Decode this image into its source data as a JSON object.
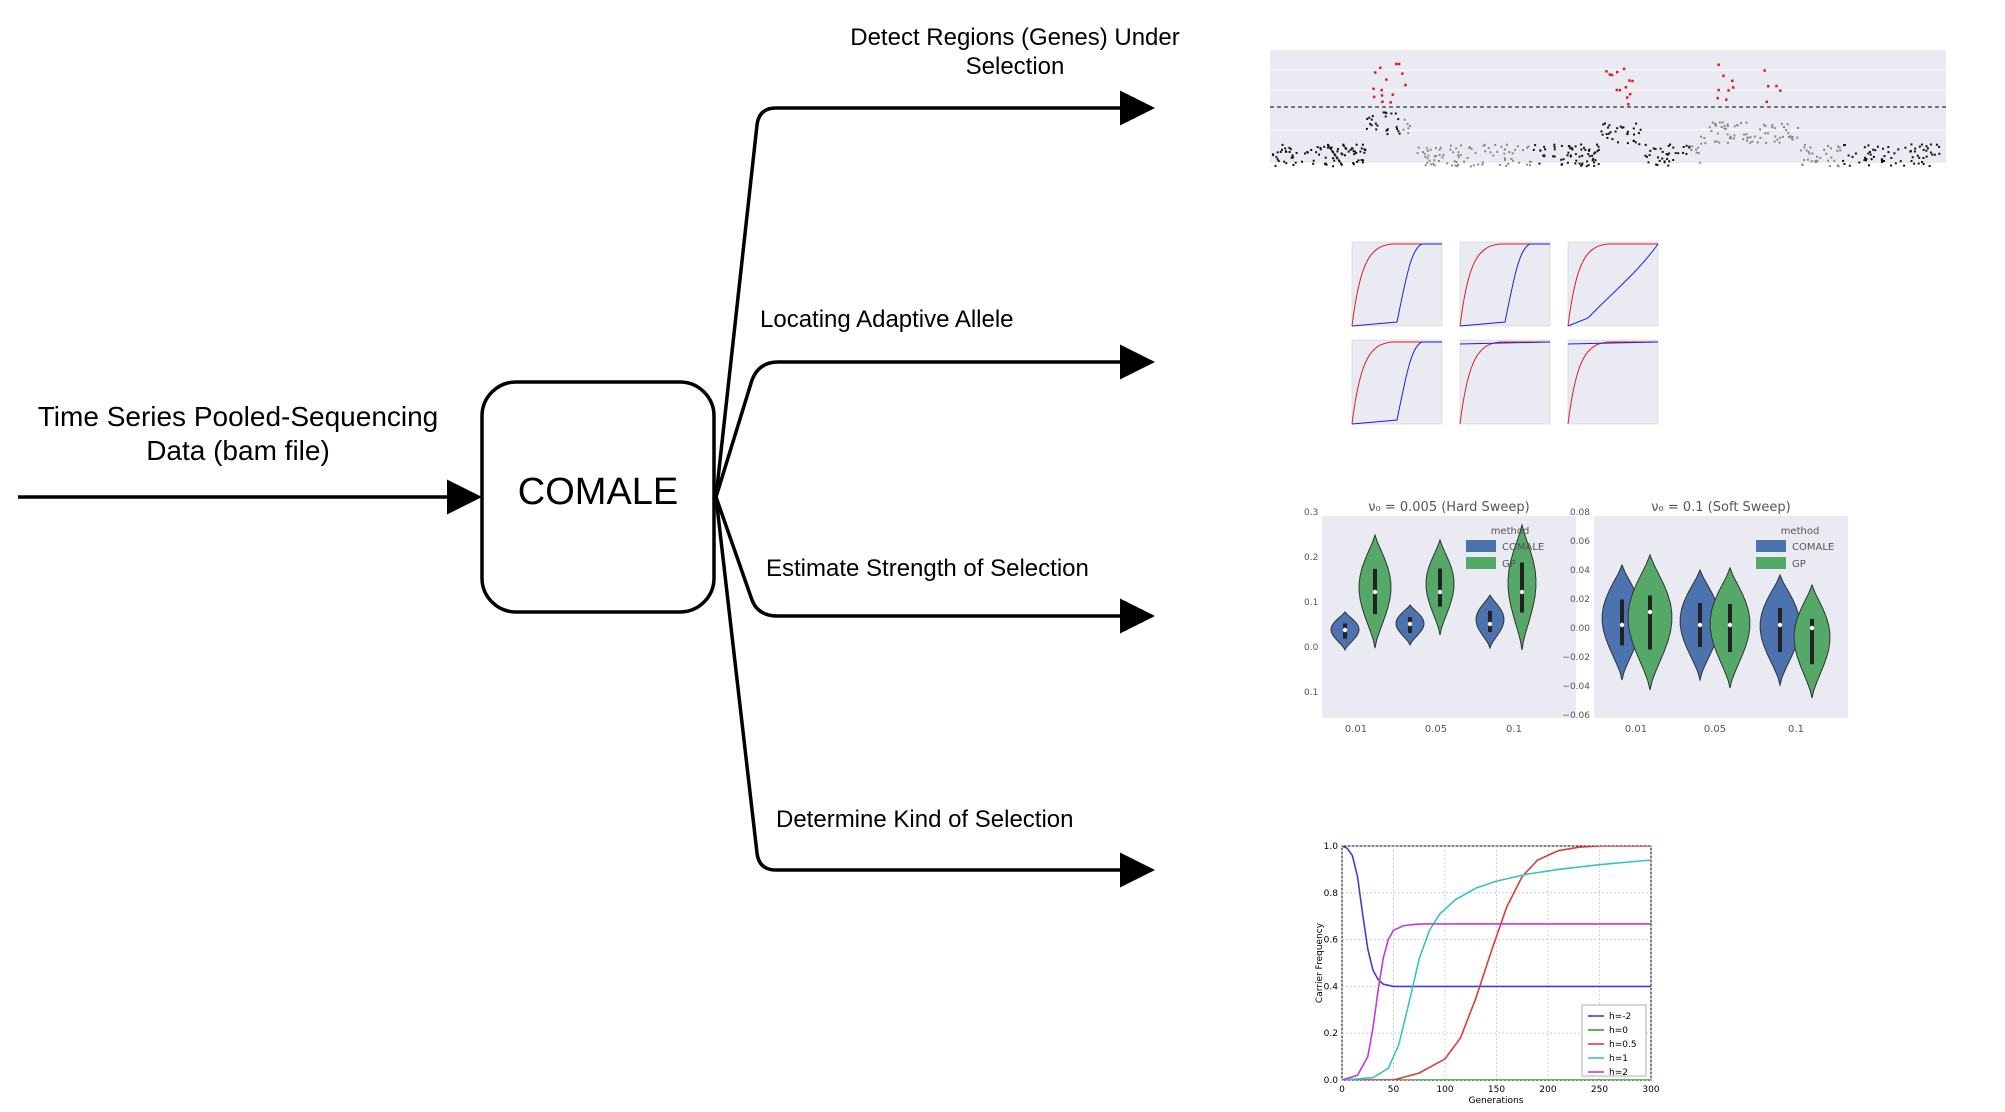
{
  "input": {
    "label_line1": "Time Series Pooled-Sequencing",
    "label_line2": "Data (bam file)"
  },
  "center_box": {
    "label": "COMALE"
  },
  "outputs": [
    {
      "label_line1": "Detect Regions (Genes) Under",
      "label_line2": "Selection",
      "thumbnail": "manhattan-plot"
    },
    {
      "label": "Locating Adaptive Allele",
      "thumbnail": "cdf-grid-plot"
    },
    {
      "label": "Estimate Strength of Selection",
      "thumbnail": "violin-plots"
    },
    {
      "label": "Determine Kind of Selection",
      "thumbnail": "carrier-frequency-plot"
    }
  ],
  "violin_panels": {
    "left_title": "ν₀ = 0.005 (Hard Sweep)",
    "right_title": "ν₀ = 0.1 (Soft Sweep)",
    "legend_title": "method",
    "legend_items": [
      "COMALE",
      "GP"
    ],
    "legend_colors": [
      "#4c72b0",
      "#55a868"
    ],
    "x_ticks": [
      "0.01",
      "0.05",
      "0.1"
    ],
    "left_y_ticks": [
      "0.3",
      "0.2",
      "0.1",
      "0.0",
      "0.1"
    ],
    "right_y_ticks": [
      "0.08",
      "0.06",
      "0.04",
      "0.02",
      "0.00",
      "−0.02",
      "−0.04",
      "−0.06"
    ]
  },
  "chart_data": {
    "type": "line",
    "xlabel": "Generations",
    "ylabel": "Carrier Frequency",
    "xlim": [
      0,
      300
    ],
    "ylim": [
      0,
      1
    ],
    "x_ticks": [
      "0",
      "50",
      "100",
      "150",
      "200",
      "250",
      "300"
    ],
    "y_ticks": [
      "0.0",
      "0.2",
      "0.4",
      "0.6",
      "0.8",
      "1.0"
    ],
    "grid": true,
    "legend_position": "bottom-right",
    "series": [
      {
        "name": "h=-2",
        "color": "#3f3fd8",
        "x": [
          0,
          5,
          10,
          15,
          20,
          25,
          30,
          35,
          40,
          50,
          60,
          100,
          150,
          200,
          250,
          300
        ],
        "values": [
          1.0,
          0.99,
          0.96,
          0.87,
          0.71,
          0.56,
          0.47,
          0.43,
          0.41,
          0.4,
          0.4,
          0.4,
          0.4,
          0.4,
          0.4,
          0.4
        ]
      },
      {
        "name": "h=0",
        "color": "#2ca02c",
        "x": [
          0,
          50,
          100,
          150,
          200,
          250,
          300
        ],
        "values": [
          0,
          0,
          0,
          0,
          0,
          0,
          0
        ]
      },
      {
        "name": "h=0.5",
        "color": "#e03a3a",
        "x": [
          0,
          50,
          75,
          100,
          115,
          130,
          145,
          160,
          175,
          190,
          210,
          230,
          250,
          270,
          300
        ],
        "values": [
          0.0,
          0.0,
          0.03,
          0.09,
          0.18,
          0.35,
          0.55,
          0.74,
          0.87,
          0.94,
          0.98,
          0.995,
          1.0,
          1.0,
          1.0
        ]
      },
      {
        "name": "h=1",
        "color": "#35c4c4",
        "x": [
          0,
          30,
          45,
          55,
          65,
          75,
          85,
          95,
          110,
          130,
          150,
          180,
          210,
          250,
          300
        ],
        "values": [
          0.0,
          0.01,
          0.05,
          0.15,
          0.33,
          0.52,
          0.64,
          0.71,
          0.77,
          0.82,
          0.85,
          0.88,
          0.9,
          0.92,
          0.94
        ]
      },
      {
        "name": "h=2",
        "color": "#c23ad8",
        "x": [
          0,
          15,
          25,
          30,
          35,
          40,
          45,
          50,
          60,
          70,
          80,
          100,
          150,
          200,
          300
        ],
        "values": [
          0.0,
          0.02,
          0.1,
          0.22,
          0.38,
          0.52,
          0.6,
          0.64,
          0.66,
          0.665,
          0.667,
          0.667,
          0.667,
          0.667,
          0.667
        ]
      }
    ]
  }
}
